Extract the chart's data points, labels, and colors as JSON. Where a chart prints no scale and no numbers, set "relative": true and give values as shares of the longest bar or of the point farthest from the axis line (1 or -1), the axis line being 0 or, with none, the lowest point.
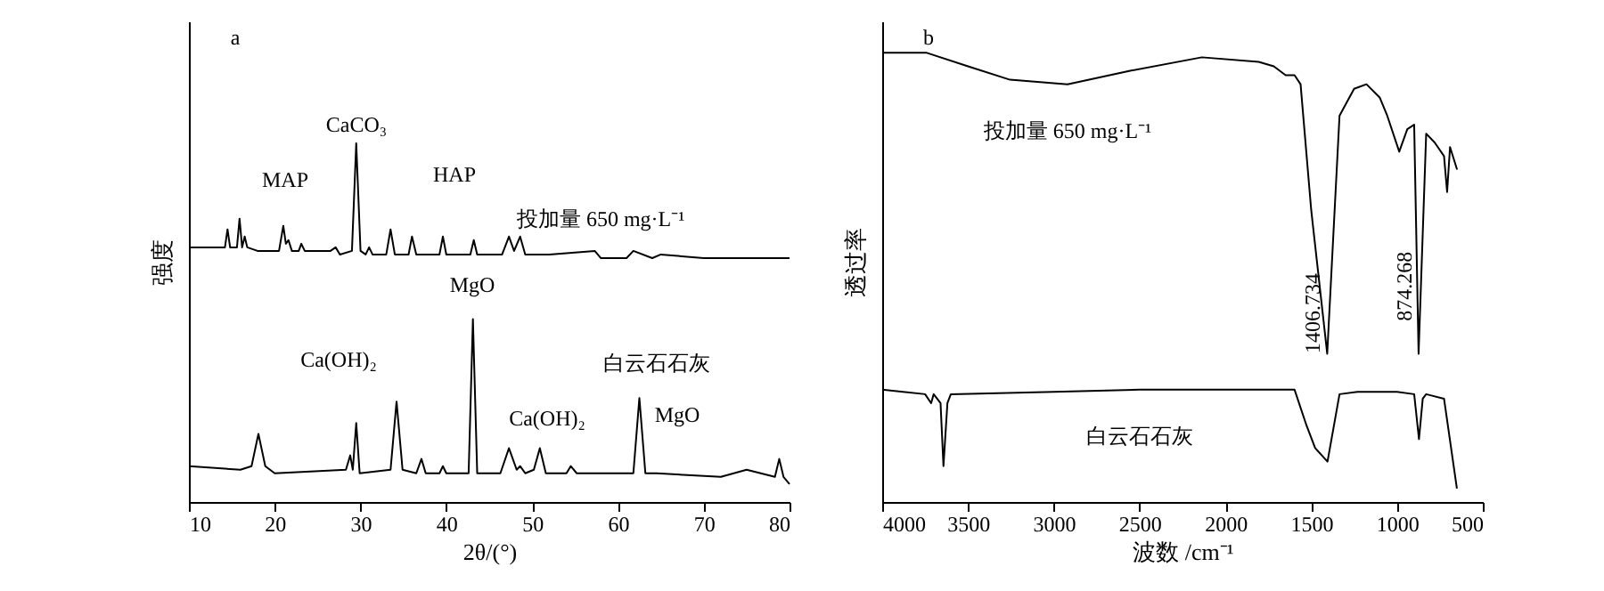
{
  "chart_data": [
    {
      "type": "line",
      "relative": true,
      "xlabel": "2θ/(°)",
      "ylabel": "强度",
      "xlim": [
        10,
        80
      ],
      "xticks": [
        10,
        20,
        30,
        40,
        50,
        60,
        70,
        80
      ],
      "grid": false,
      "legend": false,
      "marker": "none",
      "line_style": "solid",
      "annotations": [
        "a",
        "MAP",
        "CaCO₃",
        "HAP",
        "MgO",
        "Ca(OH)₂",
        "Ca(OH)₂",
        "MgO"
      ],
      "series": [
        {
          "name": "投加量 650 mg·L⁻¹",
          "color": "#000000",
          "x": [
            10,
            13,
            14.2,
            14.5,
            14.8,
            15.6,
            15.9,
            16.2,
            16.5,
            16.8,
            18,
            20.5,
            21.0,
            21.3,
            21.6,
            22,
            22.8,
            23.1,
            23.5,
            26.5,
            27.1,
            27.6,
            29.0,
            29.5,
            30.0,
            30.6,
            31.0,
            31.4,
            33.0,
            33.5,
            34.0,
            35.6,
            36.0,
            36.5,
            39.2,
            39.6,
            40.0,
            42.8,
            43.2,
            43.6,
            46.5,
            47.3,
            47.9,
            48.6,
            49.2,
            52,
            57.3,
            58,
            61,
            61.8,
            64,
            65,
            70,
            80
          ],
          "values": [
            0.71,
            0.71,
            0.71,
            0.76,
            0.71,
            0.71,
            0.79,
            0.71,
            0.74,
            0.71,
            0.7,
            0.7,
            0.77,
            0.72,
            0.73,
            0.7,
            0.7,
            0.72,
            0.7,
            0.7,
            0.71,
            0.69,
            0.7,
            1.0,
            0.7,
            0.69,
            0.71,
            0.69,
            0.69,
            0.76,
            0.69,
            0.69,
            0.74,
            0.69,
            0.69,
            0.74,
            0.69,
            0.69,
            0.73,
            0.69,
            0.69,
            0.74,
            0.7,
            0.74,
            0.69,
            0.69,
            0.7,
            0.68,
            0.68,
            0.7,
            0.68,
            0.69,
            0.68,
            0.68
          ]
        },
        {
          "name": "白云石石灰",
          "color": "#000000",
          "x": [
            10,
            16,
            17.3,
            18.1,
            18.9,
            20,
            28.3,
            28.8,
            29.1,
            29.5,
            29.9,
            33.5,
            34.2,
            34.9,
            36.5,
            37.1,
            37.6,
            39.2,
            39.6,
            40,
            42.6,
            43.1,
            43.6,
            46.3,
            47.3,
            48.2,
            48.6,
            49.2,
            50.2,
            50.9,
            51.6,
            54,
            54.5,
            55.2,
            61.8,
            62.5,
            63.2,
            64.5,
            72,
            75,
            78.3,
            78.8,
            79.3,
            80
          ],
          "values": [
            0.1,
            0.09,
            0.1,
            0.19,
            0.1,
            0.08,
            0.09,
            0.13,
            0.09,
            0.22,
            0.08,
            0.09,
            0.28,
            0.09,
            0.08,
            0.12,
            0.08,
            0.08,
            0.1,
            0.08,
            0.08,
            0.51,
            0.08,
            0.08,
            0.15,
            0.09,
            0.1,
            0.08,
            0.09,
            0.15,
            0.08,
            0.08,
            0.1,
            0.08,
            0.08,
            0.29,
            0.08,
            0.08,
            0.07,
            0.09,
            0.07,
            0.12,
            0.07,
            0.05
          ]
        }
      ]
    },
    {
      "type": "line",
      "relative": true,
      "xlabel": "波数 /cm⁻¹",
      "ylabel": "透过率",
      "xlim": [
        4000,
        500
      ],
      "xticks": [
        4000,
        3500,
        3000,
        2500,
        2000,
        1500,
        1000,
        500
      ],
      "grid": false,
      "legend": false,
      "marker": "none",
      "line_style": "solid",
      "annotations": [
        "b",
        {
          "text": "1406.734",
          "x": 1406.734,
          "y": 0.42
        },
        {
          "text": "874.268",
          "x": 874.268,
          "y": 0.48
        }
      ],
      "series": [
        {
          "name": "投加量 650 mg·L⁻¹",
          "color": "#000000",
          "x": [
            4000,
            3740,
            3500,
            3255,
            2920,
            2555,
            2137,
            1806,
            1718,
            1649,
            1597,
            1562,
            1500,
            1406.734,
            1335,
            1250,
            1178,
            1100,
            1057,
            987,
            940,
            900,
            874.268,
            830,
            780,
            726,
            708,
            691,
            650
          ],
          "values": [
            1.0,
            1.0,
            0.97,
            0.94,
            0.93,
            0.96,
            0.99,
            0.98,
            0.97,
            0.95,
            0.95,
            0.93,
            0.65,
            0.33,
            0.86,
            0.92,
            0.93,
            0.9,
            0.86,
            0.78,
            0.83,
            0.84,
            0.33,
            0.82,
            0.8,
            0.77,
            0.69,
            0.79,
            0.74
          ]
        },
        {
          "name": "白云石石灰",
          "color": "#000000",
          "x": [
            4000,
            3750,
            3715,
            3700,
            3660,
            3643,
            3620,
            3600,
            3000,
            2500,
            2000,
            1800,
            1597,
            1527,
            1477,
            1405,
            1335,
            1231,
            1000,
            900,
            872,
            850,
            830,
            726,
            651
          ],
          "values": [
            0.25,
            0.24,
            0.22,
            0.24,
            0.22,
            0.08,
            0.22,
            0.24,
            0.245,
            0.25,
            0.25,
            0.25,
            0.25,
            0.17,
            0.12,
            0.09,
            0.24,
            0.245,
            0.245,
            0.24,
            0.14,
            0.23,
            0.24,
            0.23,
            0.03
          ]
        }
      ]
    }
  ]
}
